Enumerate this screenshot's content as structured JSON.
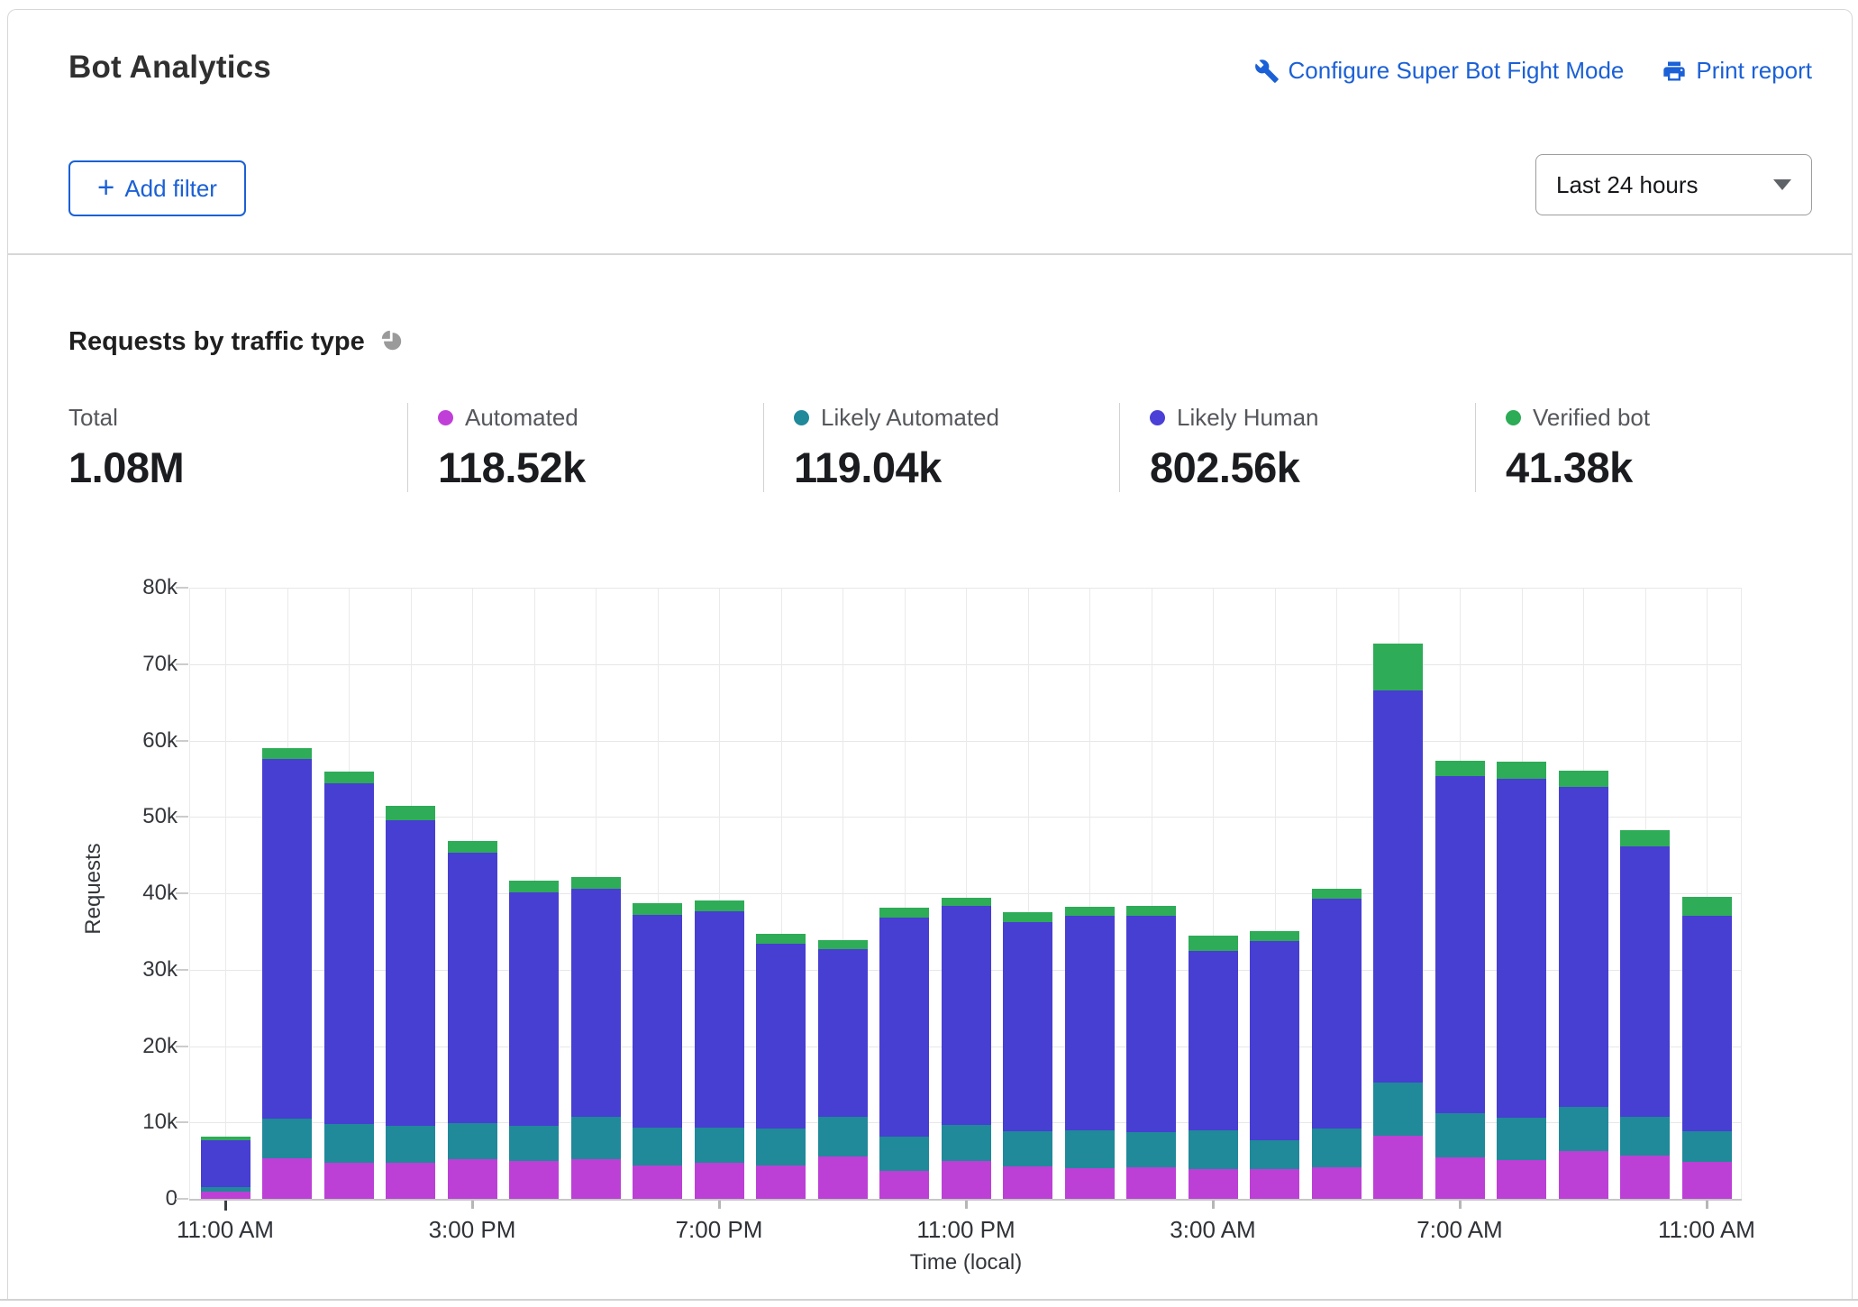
{
  "card": {
    "title": "Bot Analytics",
    "actions": [
      {
        "label": "Configure Super Bot Fight Mode",
        "icon": "wrench-icon"
      },
      {
        "label": "Print report",
        "icon": "printer-icon"
      }
    ],
    "add_filter_label": "Add filter",
    "time_range": "Last 24 hours"
  },
  "section": {
    "heading": "Requests by traffic type"
  },
  "stats": {
    "items": [
      {
        "label": "Total",
        "value": "1.08M",
        "color": null
      },
      {
        "label": "Automated",
        "value": "118.52k",
        "color": "#c13fd9"
      },
      {
        "label": "Likely Automated",
        "value": "119.04k",
        "color": "#20899a"
      },
      {
        "label": "Likely Human",
        "value": "802.56k",
        "color": "#4a3fd6"
      },
      {
        "label": "Verified bot",
        "value": "41.38k",
        "color": "#2bac55"
      }
    ]
  },
  "chart_data": {
    "type": "bar",
    "stacked": true,
    "title": "Requests by traffic type",
    "xlabel": "Time (local)",
    "ylabel": "Requests",
    "ylim_k": [
      0,
      80
    ],
    "grid": true,
    "unit": "thousands of requests",
    "categories": [
      "11:00 AM",
      "12:00 PM",
      "1:00 PM",
      "2:00 PM",
      "3:00 PM",
      "4:00 PM",
      "5:00 PM",
      "6:00 PM",
      "7:00 PM",
      "8:00 PM",
      "9:00 PM",
      "10:00 PM",
      "11:00 PM",
      "12:00 AM",
      "1:00 AM",
      "2:00 AM",
      "3:00 AM",
      "4:00 AM",
      "5:00 AM",
      "6:00 AM",
      "7:00 AM",
      "8:00 AM",
      "9:00 AM",
      "10:00 AM",
      "11:00 AM"
    ],
    "yticks": [
      "0",
      "10k",
      "20k",
      "30k",
      "40k",
      "50k",
      "60k",
      "70k",
      "80k"
    ],
    "xtick_indices": [
      0,
      4,
      8,
      12,
      16,
      20,
      24
    ],
    "xtick_labels": [
      "11:00 AM",
      "3:00 PM",
      "7:00 PM",
      "11:00 PM",
      "3:00 AM",
      "7:00 AM",
      "11:00 AM"
    ],
    "series": [
      {
        "name": "Automated",
        "color": "#bc40d6",
        "values_k": [
          0.9,
          5.3,
          4.7,
          4.7,
          5.2,
          4.9,
          5.2,
          4.35,
          4.7,
          4.35,
          5.5,
          3.7,
          5.0,
          4.3,
          4.0,
          4.15,
          3.9,
          3.95,
          4.15,
          8.3,
          5.45,
          5.1,
          6.25,
          5.7,
          4.85
        ]
      },
      {
        "name": "Likely Automated",
        "color": "#20899a",
        "values_k": [
          0.6,
          5.2,
          5.1,
          4.9,
          4.7,
          4.7,
          5.5,
          5.0,
          4.6,
          4.9,
          5.2,
          4.4,
          4.7,
          4.5,
          5.0,
          4.55,
          5.1,
          3.75,
          5.0,
          6.9,
          5.8,
          5.5,
          5.8,
          5.0,
          3.95
        ]
      },
      {
        "name": "Likely Human",
        "color": "#473ed2",
        "values_k": [
          6.2,
          47.1,
          44.6,
          40.0,
          35.4,
          30.5,
          29.9,
          27.8,
          28.3,
          24.1,
          22.0,
          28.7,
          28.6,
          27.4,
          28.0,
          28.4,
          23.5,
          26.0,
          30.1,
          51.3,
          44.1,
          44.4,
          41.9,
          35.4,
          28.2
        ]
      },
      {
        "name": "Verified bot",
        "color": "#2eac57",
        "values_k": [
          0.5,
          1.4,
          1.5,
          1.9,
          1.5,
          1.6,
          1.5,
          1.6,
          1.5,
          1.3,
          1.2,
          1.3,
          1.1,
          1.3,
          1.2,
          1.2,
          1.9,
          1.3,
          1.3,
          6.2,
          2.0,
          2.2,
          2.1,
          2.2,
          2.5
        ]
      }
    ]
  }
}
